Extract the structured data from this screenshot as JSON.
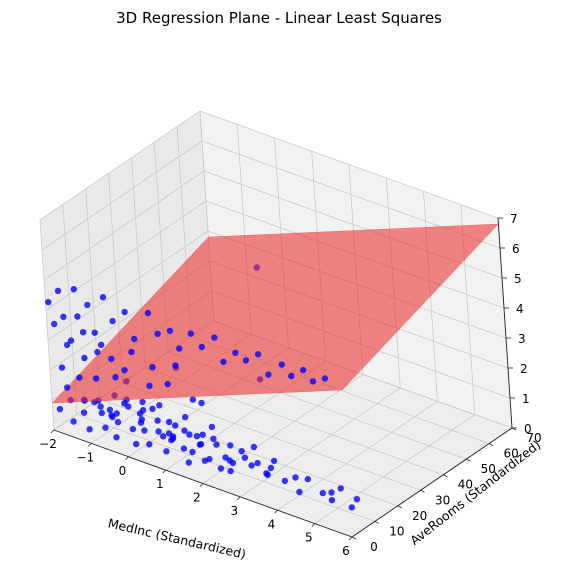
{
  "chart_data": {
    "type": "scatter",
    "title": "3D Regression Plane - Linear Least Squares",
    "xlabel": "MedInc (Standardized)",
    "ylabel": "AveRooms (Standardized)",
    "zlabel": "",
    "xlim": [
      -2,
      6
    ],
    "ylim": [
      0,
      70
    ],
    "zlim": [
      0,
      7
    ],
    "x_ticks": [
      -2,
      -1,
      0,
      1,
      2,
      3,
      4,
      5,
      6
    ],
    "y_ticks": [
      0,
      10,
      20,
      30,
      40,
      50,
      60,
      70
    ],
    "z_ticks": [
      0,
      1,
      2,
      3,
      4,
      5,
      6,
      7
    ],
    "grid": true,
    "colors": {
      "points": "#0000ff",
      "plane": "#e8302f",
      "pane_back": "#f2f2f2",
      "pane_side": "#e9e9e9",
      "pane_floor": "#ededed",
      "grid": "#c9c9c9"
    },
    "series": [
      {
        "kind": "scatter",
        "points": [
          [
            -2.0,
            1.2,
            4.2
          ],
          [
            -1.8,
            2.5,
            4.6
          ],
          [
            -1.6,
            1.0,
            3.9
          ],
          [
            -1.4,
            3.1,
            4.8
          ],
          [
            -1.2,
            0.8,
            4.1
          ],
          [
            -1.0,
            2.2,
            4.5
          ],
          [
            -0.8,
            1.5,
            3.7
          ],
          [
            -0.6,
            2.9,
            4.9
          ],
          [
            -0.3,
            1.7,
            4.3
          ],
          [
            0.0,
            2.4,
            4.7
          ],
          [
            0.3,
            1.1,
            4.0
          ],
          [
            0.6,
            3.0,
            4.9
          ],
          [
            0.9,
            1.9,
            4.4
          ],
          [
            1.2,
            2.6,
            4.6
          ],
          [
            1.5,
            1.4,
            4.2
          ],
          [
            1.8,
            2.1,
            4.8
          ],
          [
            2.1,
            1.8,
            4.5
          ],
          [
            2.4,
            2.7,
            4.9
          ],
          [
            2.7,
            1.3,
            4.3
          ],
          [
            3.0,
            2.0,
            4.7
          ],
          [
            3.3,
            1.6,
            4.6
          ],
          [
            3.6,
            2.3,
            4.9
          ],
          [
            3.9,
            1.5,
            4.4
          ],
          [
            4.2,
            2.8,
            4.8
          ],
          [
            4.5,
            1.9,
            4.6
          ],
          [
            4.8,
            2.5,
            4.9
          ],
          [
            5.1,
            1.7,
            4.7
          ],
          [
            5.4,
            2.2,
            4.9
          ],
          [
            -1.9,
            1.5,
            3.5
          ],
          [
            -1.7,
            3.3,
            2.8
          ],
          [
            -1.5,
            2.0,
            3.1
          ],
          [
            -1.3,
            4.1,
            2.5
          ],
          [
            -1.1,
            1.2,
            3.6
          ],
          [
            -0.9,
            3.6,
            2.9
          ],
          [
            -0.7,
            2.3,
            3.3
          ],
          [
            -0.5,
            4.4,
            2.2
          ],
          [
            -0.4,
            1.6,
            3.0
          ],
          [
            -0.2,
            3.8,
            2.6
          ],
          [
            0.1,
            2.6,
            3.4
          ],
          [
            0.4,
            4.7,
            2.3
          ],
          [
            0.7,
            1.9,
            3.2
          ],
          [
            1.0,
            3.2,
            2.7
          ],
          [
            1.3,
            2.4,
            3.5
          ],
          [
            1.6,
            4.2,
            2.4
          ],
          [
            -1.85,
            2.8,
            2.0
          ],
          [
            -1.65,
            1.4,
            1.5
          ],
          [
            -1.45,
            3.7,
            1.8
          ],
          [
            -1.25,
            2.2,
            1.2
          ],
          [
            -1.05,
            4.6,
            1.9
          ],
          [
            -0.85,
            1.8,
            1.4
          ],
          [
            -0.65,
            3.4,
            1.1
          ],
          [
            -0.45,
            2.7,
            1.7
          ],
          [
            -0.25,
            5.1,
            1.3
          ],
          [
            -0.05,
            1.5,
            1.8
          ],
          [
            0.15,
            3.9,
            1.0
          ],
          [
            0.35,
            2.1,
            1.6
          ],
          [
            0.55,
            4.8,
            1.2
          ],
          [
            0.75,
            2.9,
            1.9
          ],
          [
            0.95,
            3.5,
            1.4
          ],
          [
            1.15,
            1.7,
            1.1
          ],
          [
            1.35,
            4.3,
            1.7
          ],
          [
            1.55,
            2.5,
            1.3
          ],
          [
            1.75,
            3.6,
            1.0
          ],
          [
            1.95,
            2.0,
            1.5
          ],
          [
            -1.95,
            2.3,
            0.6
          ],
          [
            -1.75,
            4.0,
            0.9
          ],
          [
            -1.55,
            1.6,
            0.4
          ],
          [
            -1.35,
            3.2,
            0.7
          ],
          [
            -1.15,
            2.0,
            0.3
          ],
          [
            -0.95,
            4.5,
            0.8
          ],
          [
            -0.75,
            2.6,
            0.5
          ],
          [
            -0.55,
            3.9,
            0.2
          ],
          [
            -0.35,
            1.9,
            0.9
          ],
          [
            -0.15,
            4.9,
            0.6
          ],
          [
            0.05,
            2.8,
            0.3
          ],
          [
            0.25,
            3.6,
            0.8
          ],
          [
            0.45,
            2.2,
            0.5
          ],
          [
            0.65,
            5.2,
            0.7
          ],
          [
            0.85,
            3.1,
            0.4
          ],
          [
            1.05,
            2.4,
            0.9
          ],
          [
            1.25,
            4.4,
            0.6
          ],
          [
            1.45,
            3.0,
            0.3
          ],
          [
            1.65,
            1.8,
            0.8
          ],
          [
            1.85,
            3.7,
            0.5
          ],
          [
            2.05,
            2.6,
            0.7
          ],
          [
            2.25,
            4.1,
            0.4
          ],
          [
            2.45,
            3.3,
            0.9
          ],
          [
            2.65,
            2.0,
            0.6
          ],
          [
            -1.2,
            5.5,
            1.0
          ],
          [
            -0.8,
            6.2,
            0.7
          ],
          [
            -0.4,
            5.8,
            1.3
          ],
          [
            0.0,
            6.6,
            0.9
          ],
          [
            0.4,
            5.3,
            1.5
          ],
          [
            0.8,
            6.9,
            0.6
          ],
          [
            1.2,
            5.9,
            1.1
          ],
          [
            1.6,
            6.4,
            0.8
          ],
          [
            2.0,
            5.6,
            1.2
          ],
          [
            2.4,
            7.0,
            0.5
          ],
          [
            2.8,
            6.1,
            0.9
          ],
          [
            -1.6,
            7.4,
            0.8
          ],
          [
            -0.9,
            8.1,
            0.5
          ],
          [
            -0.1,
            7.6,
            1.0
          ],
          [
            0.6,
            8.5,
            0.6
          ],
          [
            1.4,
            7.9,
            0.9
          ],
          [
            2.2,
            8.8,
            0.4
          ],
          [
            3.0,
            8.2,
            0.7
          ],
          [
            -1.3,
            9.5,
            0.6
          ],
          [
            0.2,
            10.2,
            0.4
          ],
          [
            1.8,
            9.8,
            0.7
          ],
          [
            3.2,
            10.6,
            0.5
          ],
          [
            2.9,
            3.4,
            1.3
          ],
          [
            3.2,
            2.6,
            1.0
          ],
          [
            3.5,
            4.0,
            0.8
          ],
          [
            3.8,
            3.0,
            1.4
          ],
          [
            4.1,
            2.4,
            0.9
          ],
          [
            4.4,
            3.6,
            0.6
          ],
          [
            4.7,
            2.9,
            1.2
          ],
          [
            5.0,
            4.2,
            0.8
          ],
          [
            5.3,
            3.3,
            1.0
          ],
          [
            5.6,
            2.7,
            1.3
          ],
          [
            5.8,
            3.8,
            0.7
          ],
          [
            6.0,
            3.1,
            1.1
          ],
          [
            3.4,
            6.0,
            0.6
          ],
          [
            4.2,
            5.4,
            0.9
          ],
          [
            5.1,
            6.3,
            0.5
          ],
          [
            -1.0,
            11.5,
            0.4
          ],
          [
            0.5,
            12.8,
            0.6
          ],
          [
            1.9,
            14.0,
            0.5
          ],
          [
            -0.6,
            16.5,
            0.7
          ],
          [
            1.1,
            19.0,
            0.5
          ],
          [
            2.6,
            13.2,
            0.8
          ],
          [
            -1.5,
            24.0,
            0.6
          ],
          [
            0.3,
            27.5,
            0.5
          ],
          [
            -0.9,
            36.0,
            0.7
          ],
          [
            0.8,
            45.0,
            0.6
          ],
          [
            -0.2,
            62.0,
            3.0
          ]
        ]
      },
      {
        "kind": "surface",
        "fit": "linear least squares",
        "corners": [
          [
            -2.0,
            0.0,
            0.9
          ],
          [
            6.0,
            0.0,
            4.9
          ],
          [
            6.0,
            70.0,
            6.8
          ],
          [
            -2.0,
            70.0,
            2.8
          ]
        ]
      }
    ]
  }
}
